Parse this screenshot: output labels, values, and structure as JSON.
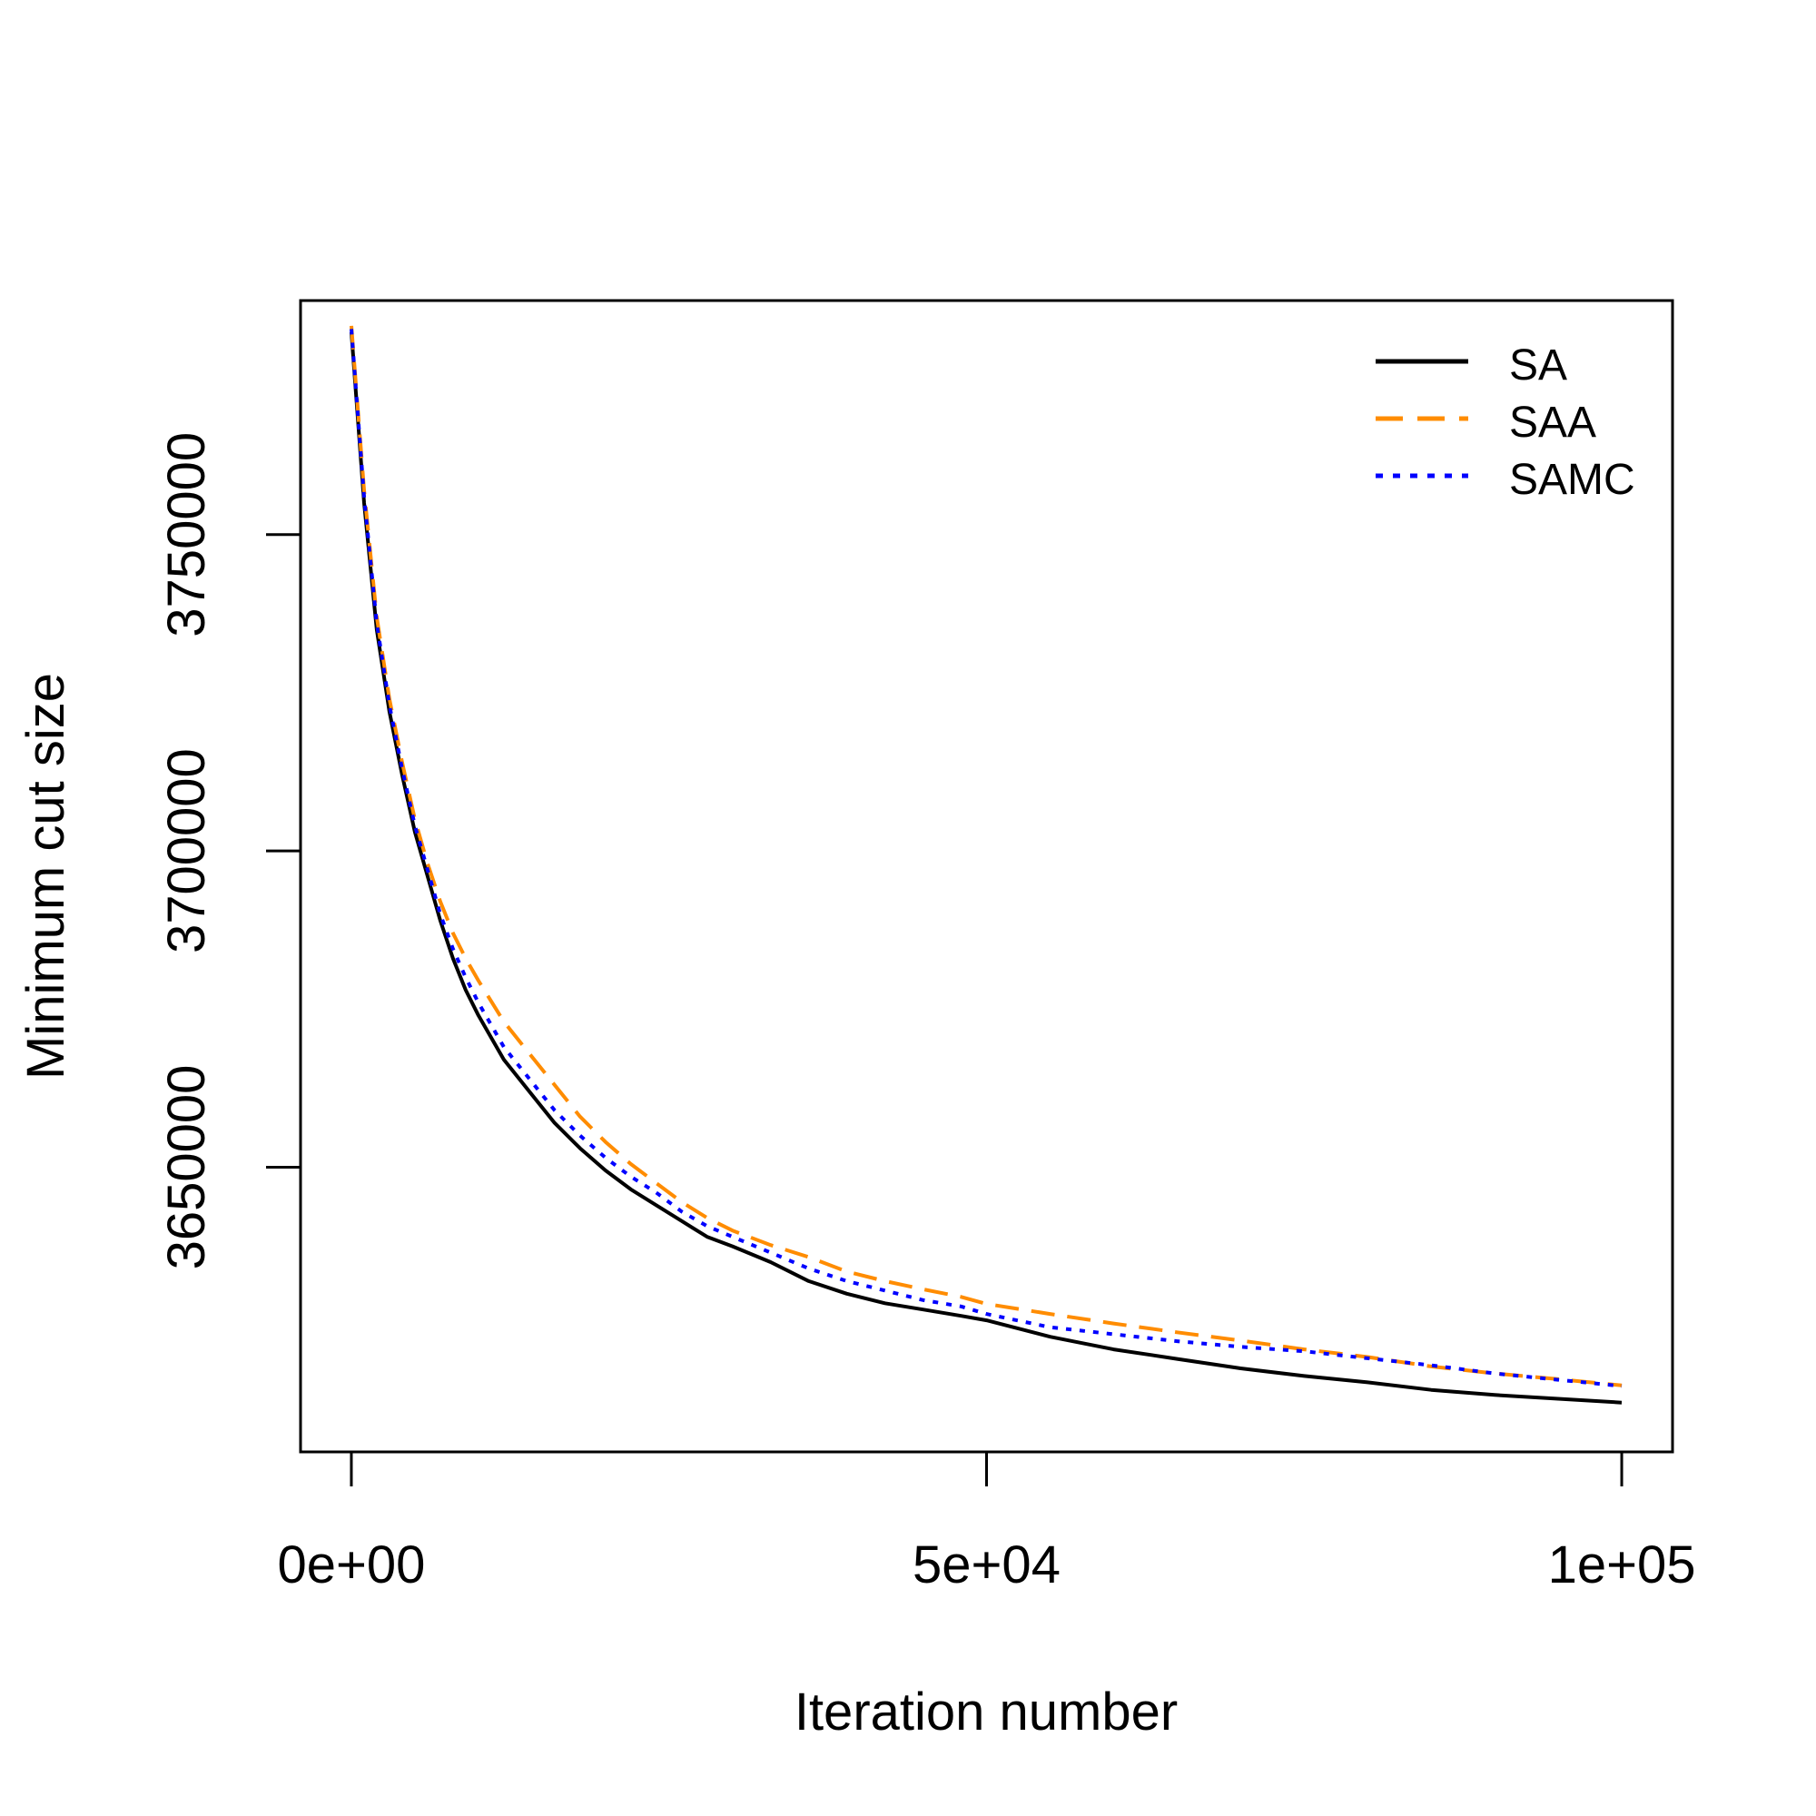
{
  "chart_data": {
    "type": "line",
    "title": "",
    "xlabel": "Iteration number",
    "ylabel": "Minimum cut size",
    "xlim": [
      -4000,
      104000
    ],
    "ylim": [
      3605000,
      3787000
    ],
    "x_ticks": [
      0,
      50000,
      100000
    ],
    "x_tick_labels": [
      "0e+00",
      "5e+04",
      "1e+05"
    ],
    "y_ticks": [
      3650000,
      3700000,
      3750000
    ],
    "y_tick_labels": [
      "3650000",
      "3700000",
      "3750000"
    ],
    "grid": false,
    "legend_position": "top-right",
    "x": [
      0,
      1000,
      2000,
      3000,
      4000,
      5000,
      6000,
      7000,
      8000,
      9000,
      10000,
      12000,
      14000,
      16000,
      18000,
      20000,
      22000,
      24000,
      26000,
      28000,
      30000,
      33000,
      36000,
      39000,
      42000,
      45000,
      48000,
      50000,
      55000,
      60000,
      65000,
      70000,
      75000,
      80000,
      85000,
      90000,
      95000,
      100000
    ],
    "series": [
      {
        "name": "SA",
        "color": "#000000",
        "dash": "solid",
        "values": [
          3782000,
          3755000,
          3735000,
          3722000,
          3712000,
          3703000,
          3696000,
          3689000,
          3683000,
          3678000,
          3674000,
          3667000,
          3662000,
          3657000,
          3653000,
          3649500,
          3646500,
          3644000,
          3641500,
          3639000,
          3637500,
          3635000,
          3632000,
          3630000,
          3628500,
          3627500,
          3626500,
          3625800,
          3623200,
          3621200,
          3619700,
          3618200,
          3617000,
          3616000,
          3614800,
          3614000,
          3613400,
          3612800
        ]
      },
      {
        "name": "SAA",
        "color": "#ff8c00",
        "dash": "dashed",
        "values": [
          3783000,
          3757000,
          3737000,
          3724000,
          3714000,
          3705000,
          3698000,
          3692000,
          3687000,
          3683000,
          3679500,
          3673000,
          3668000,
          3663000,
          3658000,
          3654000,
          3650500,
          3647500,
          3644500,
          3642000,
          3640000,
          3637700,
          3635800,
          3633500,
          3632000,
          3630700,
          3629500,
          3628400,
          3626800,
          3625300,
          3623900,
          3622600,
          3621200,
          3620000,
          3618500,
          3617400,
          3616500,
          3615500
        ]
      },
      {
        "name": "SAMC",
        "color": "#0000ff",
        "dash": "dotted",
        "values": [
          3782500,
          3756000,
          3736000,
          3723000,
          3713000,
          3704000,
          3697000,
          3690000,
          3684500,
          3680000,
          3676000,
          3669000,
          3664000,
          3659000,
          3655000,
          3651500,
          3648500,
          3646000,
          3643000,
          3640700,
          3639000,
          3636500,
          3634000,
          3632000,
          3630500,
          3629000,
          3628000,
          3626800,
          3624700,
          3623600,
          3622500,
          3621600,
          3620900,
          3619800,
          3618700,
          3617400,
          3616400,
          3615400
        ]
      }
    ]
  }
}
